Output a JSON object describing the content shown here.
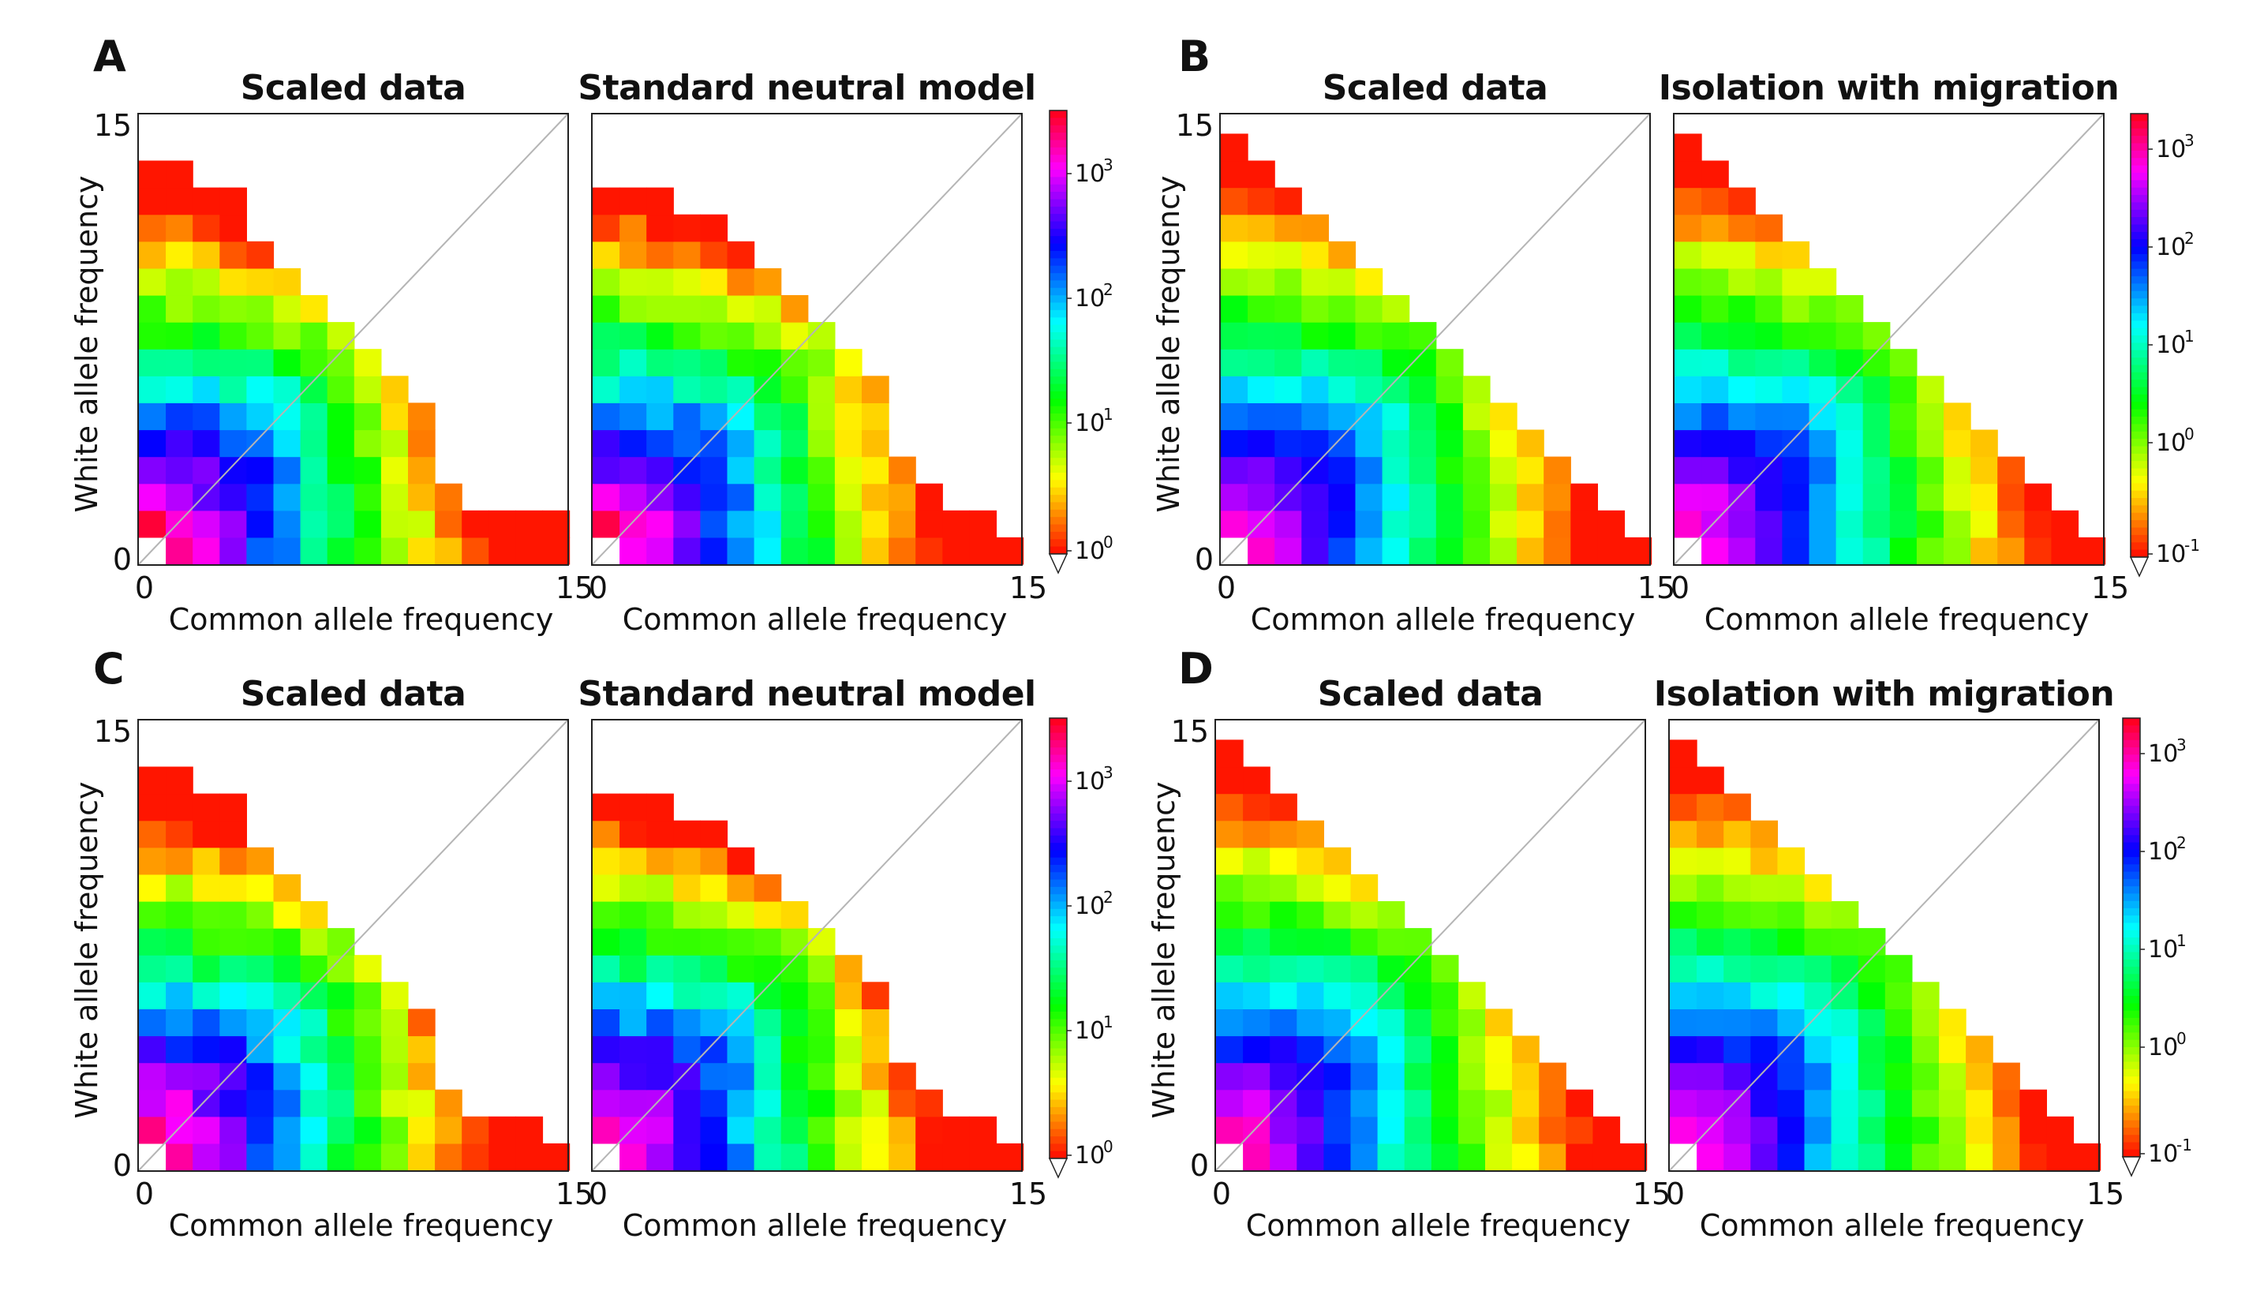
{
  "figure": {
    "panels": [
      {
        "letter": "A",
        "titles": [
          "Scaled data",
          "Standard neutral model"
        ],
        "colorbar_ticks": [
          {
            "base": "10",
            "exp": "3"
          },
          {
            "base": "10",
            "exp": "2"
          },
          {
            "base": "10",
            "exp": "1"
          },
          {
            "base": "10",
            "exp": "0"
          }
        ]
      },
      {
        "letter": "B",
        "titles": [
          "Scaled data",
          "Isolation with migration"
        ],
        "colorbar_ticks": [
          {
            "base": "10",
            "exp": "3"
          },
          {
            "base": "10",
            "exp": "2"
          },
          {
            "base": "10",
            "exp": "1"
          },
          {
            "base": "10",
            "exp": "0"
          },
          {
            "base": "10",
            "exp": "-1"
          }
        ]
      },
      {
        "letter": "C",
        "titles": [
          "Scaled data",
          "Standard neutral model"
        ],
        "colorbar_ticks": [
          {
            "base": "10",
            "exp": "3"
          },
          {
            "base": "10",
            "exp": "2"
          },
          {
            "base": "10",
            "exp": "1"
          },
          {
            "base": "10",
            "exp": "0"
          }
        ]
      },
      {
        "letter": "D",
        "titles": [
          "Scaled data",
          "Isolation with migration"
        ],
        "colorbar_ticks": [
          {
            "base": "10",
            "exp": "3"
          },
          {
            "base": "10",
            "exp": "2"
          },
          {
            "base": "10",
            "exp": "1"
          },
          {
            "base": "10",
            "exp": "0"
          },
          {
            "base": "10",
            "exp": "-1"
          }
        ]
      }
    ],
    "xlabel": "Common allele frequency",
    "ylabel": "White allele frequency",
    "tick_min": "0",
    "tick_max": "15"
  },
  "chart_data": [
    {
      "panel": "A",
      "type": "heatmap",
      "title": "Scaled data",
      "xlabel": "Common allele frequency",
      "ylabel": "White allele frequency",
      "xlim": [
        0,
        15
      ],
      "ylim": [
        0,
        15
      ],
      "colorbar": {
        "scale": "log",
        "range": [
          1,
          3000
        ]
      }
    },
    {
      "panel": "A",
      "type": "heatmap",
      "title": "Standard neutral model",
      "xlabel": "Common allele frequency",
      "ylabel": "",
      "xlim": [
        0,
        15
      ],
      "ylim": [
        0,
        15
      ],
      "colorbar": {
        "scale": "log",
        "range": [
          1,
          3000
        ]
      }
    },
    {
      "panel": "B",
      "type": "heatmap",
      "title": "Scaled data",
      "xlabel": "Common allele frequency",
      "ylabel": "White allele frequency",
      "xlim": [
        0,
        15
      ],
      "ylim": [
        0,
        15
      ],
      "colorbar": {
        "scale": "log",
        "range": [
          0.1,
          3000
        ]
      }
    },
    {
      "panel": "B",
      "type": "heatmap",
      "title": "Isolation with migration",
      "xlabel": "Common allele frequency",
      "ylabel": "",
      "xlim": [
        0,
        15
      ],
      "ylim": [
        0,
        15
      ],
      "colorbar": {
        "scale": "log",
        "range": [
          0.1,
          3000
        ]
      }
    },
    {
      "panel": "C",
      "type": "heatmap",
      "title": "Scaled data",
      "xlabel": "Common allele frequency",
      "ylabel": "White allele frequency",
      "xlim": [
        0,
        15
      ],
      "ylim": [
        0,
        15
      ],
      "colorbar": {
        "scale": "log",
        "range": [
          1,
          3000
        ]
      }
    },
    {
      "panel": "C",
      "type": "heatmap",
      "title": "Standard neutral model",
      "xlabel": "Common allele frequency",
      "ylabel": "",
      "xlim": [
        0,
        15
      ],
      "ylim": [
        0,
        15
      ],
      "colorbar": {
        "scale": "log",
        "range": [
          1,
          3000
        ]
      }
    },
    {
      "panel": "D",
      "type": "heatmap",
      "title": "Scaled data",
      "xlabel": "Common allele frequency",
      "ylabel": "White allele frequency",
      "xlim": [
        0,
        15
      ],
      "ylim": [
        0,
        15
      ],
      "colorbar": {
        "scale": "log",
        "range": [
          0.1,
          3000
        ]
      }
    },
    {
      "panel": "D",
      "type": "heatmap",
      "title": "Isolation with migration",
      "xlabel": "Common allele frequency",
      "ylabel": "",
      "xlim": [
        0,
        15
      ],
      "ylim": [
        0,
        15
      ],
      "colorbar": {
        "scale": "log",
        "range": [
          0.1,
          3000
        ]
      }
    }
  ]
}
